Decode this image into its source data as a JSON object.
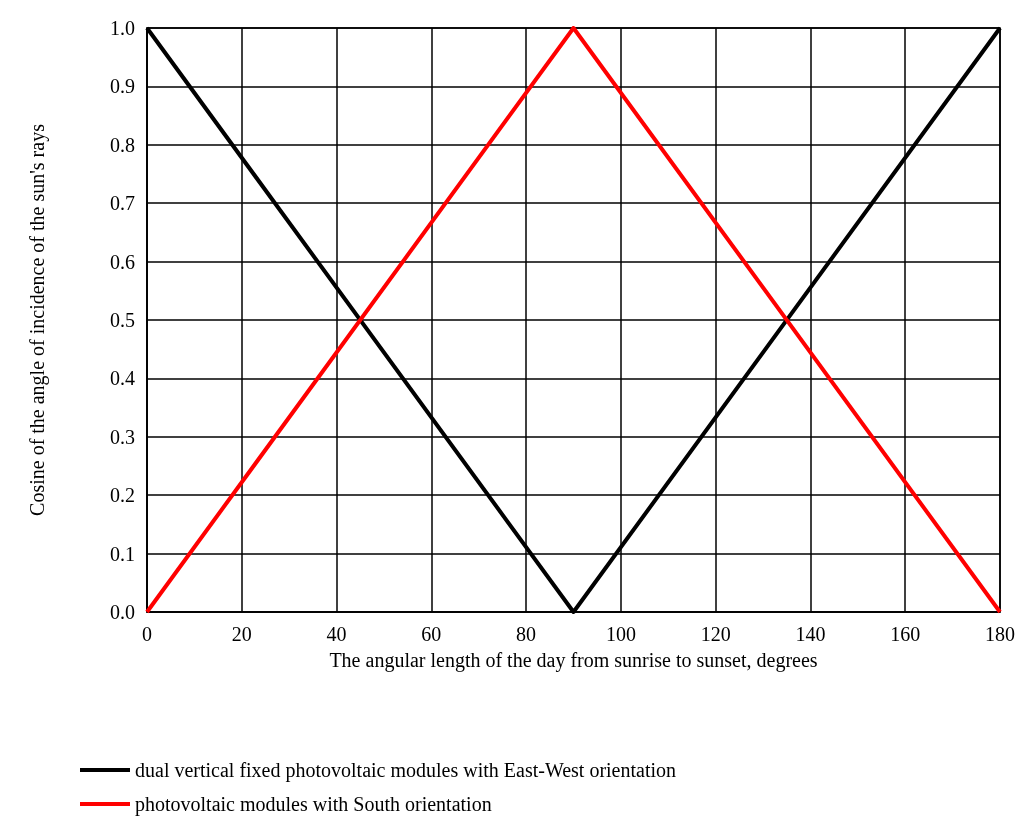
{
  "chart_data": {
    "type": "line",
    "xlabel": "The angular length of the day from sunrise to sunset, degrees",
    "ylabel": "Cosine of the angle of incidence of the sun's rays",
    "series": [
      {
        "name": "dual vertical fixed photovoltaic modules with East-West orientation",
        "color": "#000000",
        "x": [
          0,
          90,
          180
        ],
        "values": [
          1.0,
          0.0,
          1.0
        ]
      },
      {
        "name": "photovoltaic modules with South orientation",
        "color": "#ff0000",
        "x": [
          0,
          90,
          180
        ],
        "values": [
          0.0,
          1.0,
          0.0
        ]
      }
    ],
    "xlim": [
      0,
      180
    ],
    "xticks": [
      0,
      20,
      40,
      60,
      80,
      100,
      120,
      140,
      160,
      180
    ],
    "ylim": [
      0,
      1
    ],
    "yticks": [
      {
        "value": 0,
        "label": "0.0"
      },
      {
        "value": 0.1,
        "label": "0.1"
      },
      {
        "value": 0.2,
        "label": "0.2"
      },
      {
        "value": 0.3,
        "label": "0.3"
      },
      {
        "value": 0.4,
        "label": "0.4"
      },
      {
        "value": 0.5,
        "label": "0.5"
      },
      {
        "value": 0.6,
        "label": "0.6"
      },
      {
        "value": 0.7,
        "label": "0.7"
      },
      {
        "value": 0.8,
        "label": "0.8"
      },
      {
        "value": 0.9,
        "label": "0.9"
      },
      {
        "value": 1,
        "label": "1.0"
      }
    ],
    "grid": true,
    "legend": "bottom",
    "marker": "none",
    "line_style": "solid"
  }
}
